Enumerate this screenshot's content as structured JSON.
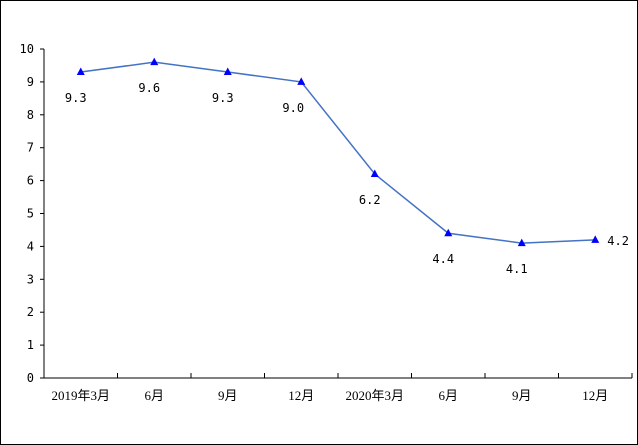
{
  "chart_data": {
    "type": "line",
    "title": "",
    "xlabel": "",
    "ylabel": "",
    "categories": [
      "2019年3月",
      "6月",
      "9月",
      "12月",
      "2020年3月",
      "6月",
      "9月",
      "12月"
    ],
    "series": [
      {
        "name": "",
        "values": [
          9.3,
          9.6,
          9.3,
          9.0,
          6.2,
          4.4,
          4.1,
          4.2
        ],
        "labels": [
          "9.3",
          "9.6",
          "9.3",
          "9.0",
          "6.2",
          "4.4",
          "4.1",
          "4.2"
        ],
        "color": "#4472C4",
        "marker_color": "#0000FF",
        "marker": "triangle"
      }
    ],
    "yticks": [
      "0",
      "1",
      "2",
      "3",
      "4",
      "5",
      "6",
      "7",
      "8",
      "9",
      "10"
    ],
    "ylim": [
      0,
      10
    ],
    "grid": false,
    "legend": "none"
  }
}
